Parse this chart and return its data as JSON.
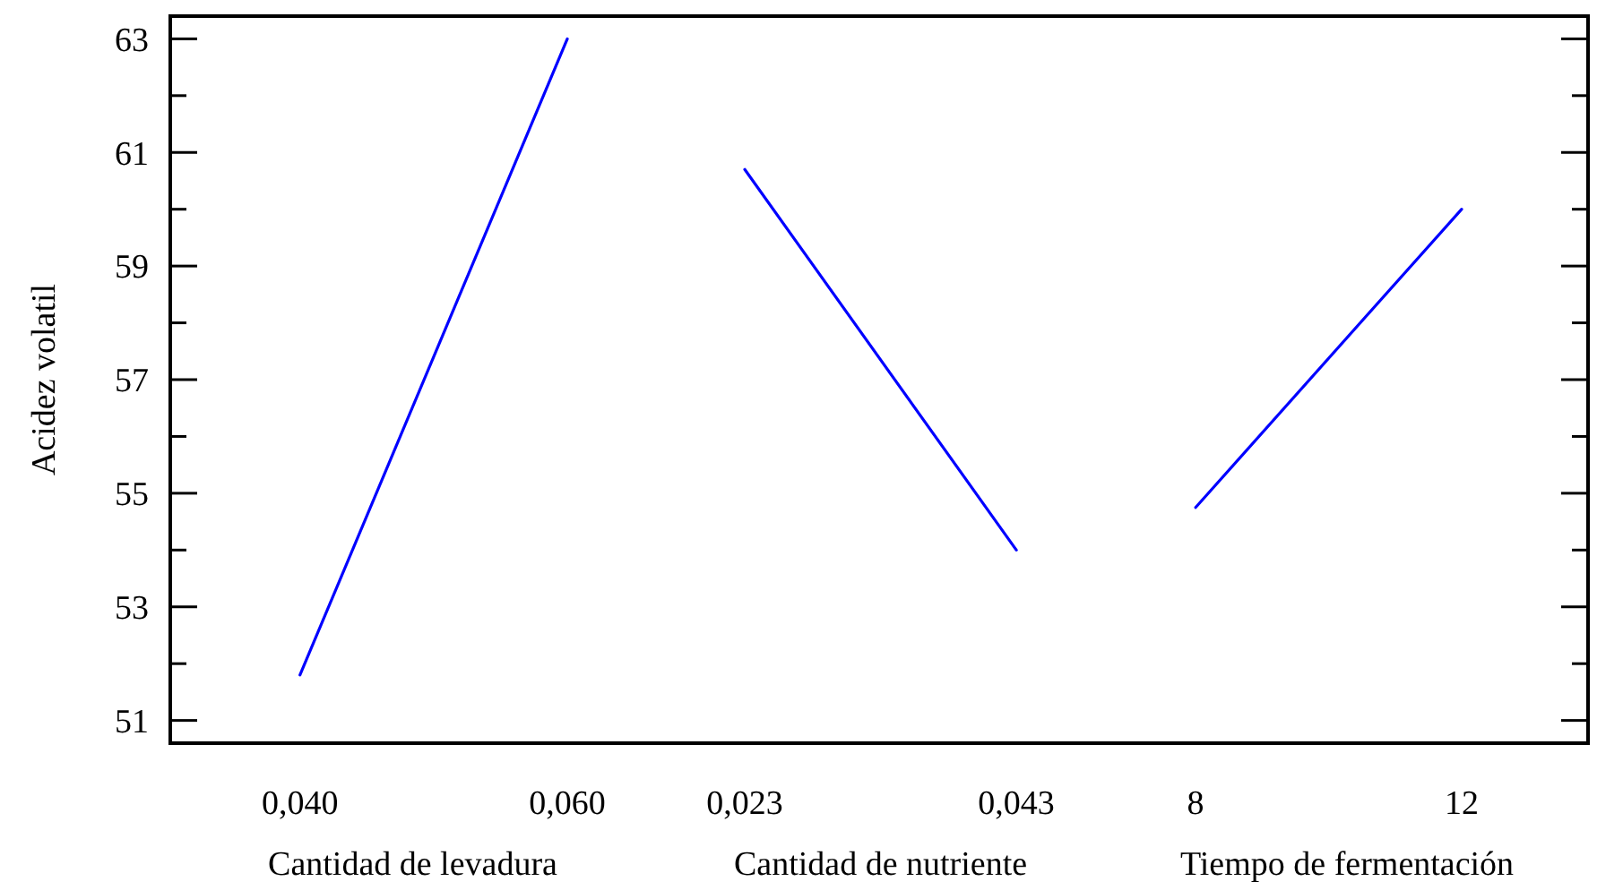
{
  "chart_data": [
    {
      "type": "line",
      "xlabel": "Cantidad de levadura",
      "ylabel": "Acidez volatil",
      "x": [
        0.04,
        0.06
      ],
      "xlim": [
        0.0303,
        0.06
      ],
      "xticks": [
        {
          "value": 0.04,
          "label": "0,040"
        },
        {
          "value": 0.06,
          "label": "0,060"
        }
      ],
      "ylim": [
        50.6,
        63.4
      ],
      "yticks": [
        51,
        {
          "value": 52,
          "label": null
        },
        53,
        {
          "value": 54,
          "label": null
        },
        55,
        {
          "value": 56,
          "label": null
        },
        57,
        {
          "value": 58,
          "label": null
        },
        59,
        {
          "value": 60,
          "label": null
        },
        61,
        {
          "value": 62,
          "label": null
        },
        63
      ],
      "series": [
        {
          "color": "#0000ff",
          "values": [
            51.8,
            63.0
          ]
        }
      ]
    },
    {
      "type": "line",
      "xlabel": "Cantidad de nutriente",
      "x": [
        0.023,
        0.043
      ],
      "xlim": [
        0.023,
        0.043
      ],
      "xticks": [
        {
          "value": 0.023,
          "label": "0,023"
        },
        {
          "value": 0.043,
          "label": "0,043"
        }
      ],
      "ylim": [
        50.6,
        63.4
      ],
      "tick_labels": "x",
      "series": [
        {
          "color": "#0000ff",
          "values": [
            60.7,
            54.0
          ]
        }
      ]
    },
    {
      "type": "line",
      "xlabel": "Tiempo de fermentación",
      "x": [
        8,
        12
      ],
      "xlim": [
        8,
        13.9
      ],
      "xticks": [
        8,
        12
      ],
      "ylim": [
        50.6,
        63.4
      ],
      "yticks": [
        51,
        {
          "value": 52,
          "label": null
        },
        53,
        {
          "value": 54,
          "label": null
        },
        55,
        {
          "value": 56,
          "label": null
        },
        57,
        {
          "value": 58,
          "label": null
        },
        59,
        {
          "value": 60,
          "label": null
        },
        61,
        {
          "value": 62,
          "label": null
        },
        63
      ],
      "tick_labels": "x",
      "series": [
        {
          "color": "#0000ff",
          "values": [
            54.75,
            60.0
          ]
        }
      ]
    }
  ]
}
